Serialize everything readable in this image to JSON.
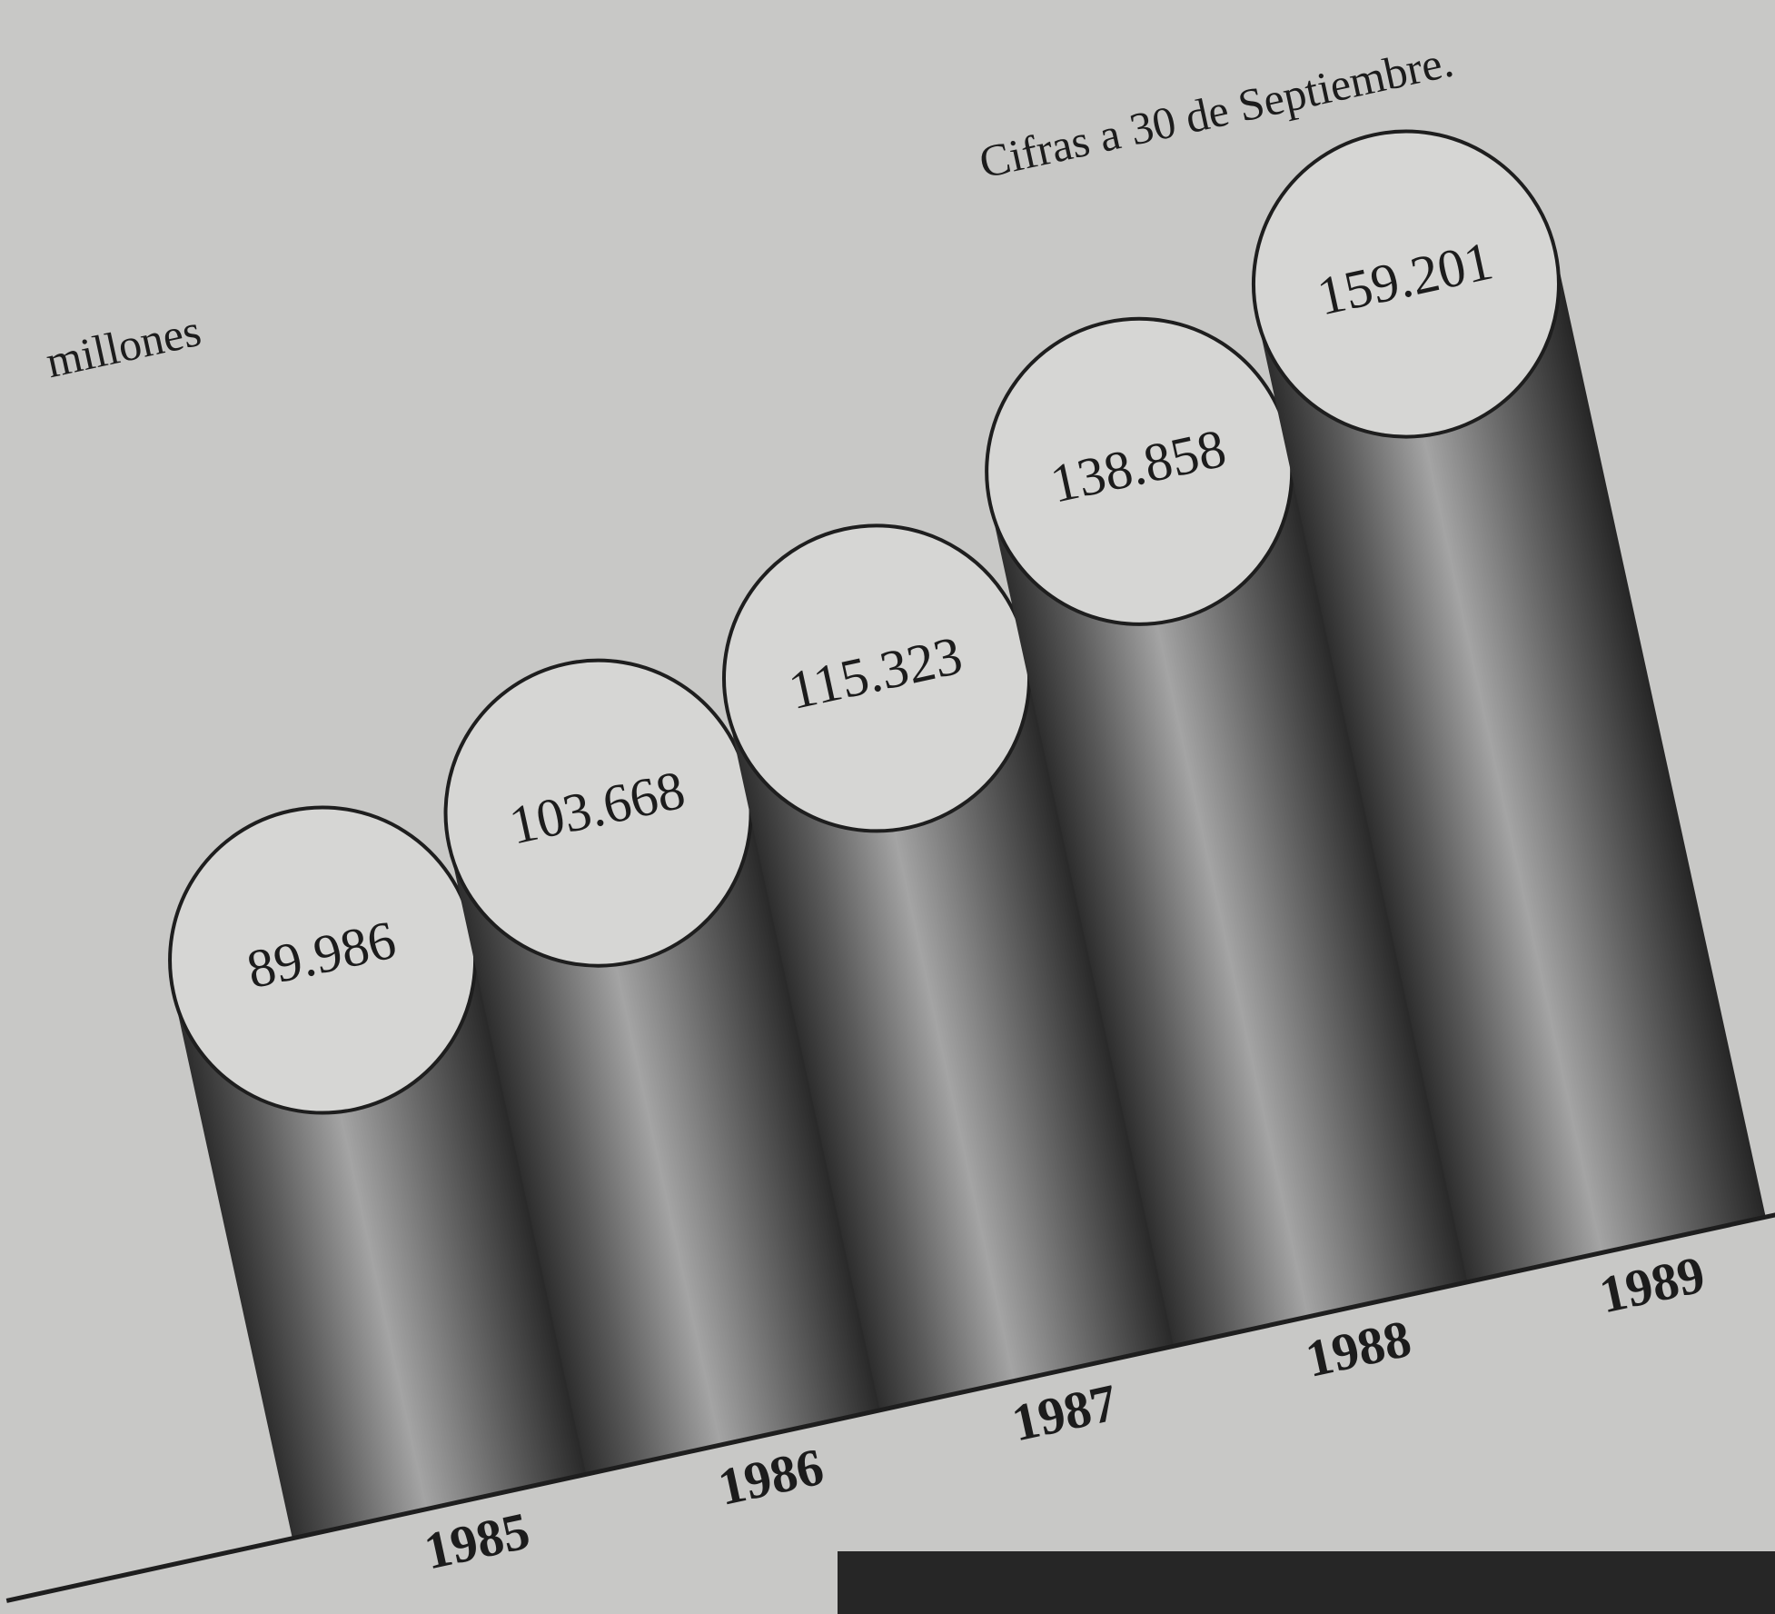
{
  "chart_data": {
    "type": "bar",
    "title": "Cifras a 30 de Septiembre.",
    "unit_label": "millones",
    "categories": [
      "1985",
      "1986",
      "1987",
      "1988",
      "1989"
    ],
    "values": [
      89986,
      103668,
      115323,
      138858,
      159201
    ],
    "value_labels": [
      "89.986",
      "103.668",
      "115.323",
      "138.858",
      "159.201"
    ]
  }
}
